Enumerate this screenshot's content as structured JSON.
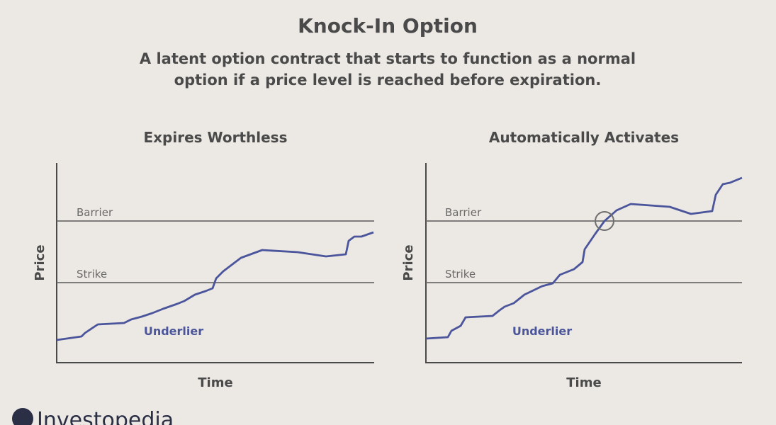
{
  "header": {
    "title": "Knock-In Option",
    "subtitle_lines": [
      "A latent option contract that starts to function as a normal",
      "option if a price level is reached before expiration."
    ]
  },
  "panels": [
    {
      "title": "Expires Worthless",
      "y_axis": "Price",
      "x_axis": "Time",
      "barrier": "Barrier",
      "strike": "Strike",
      "series": "Underlier"
    },
    {
      "title": "Automatically Activates",
      "y_axis": "Price",
      "x_axis": "Time",
      "barrier": "Barrier",
      "strike": "Strike",
      "series": "Underlier"
    }
  ],
  "logo": "Investopedia"
}
